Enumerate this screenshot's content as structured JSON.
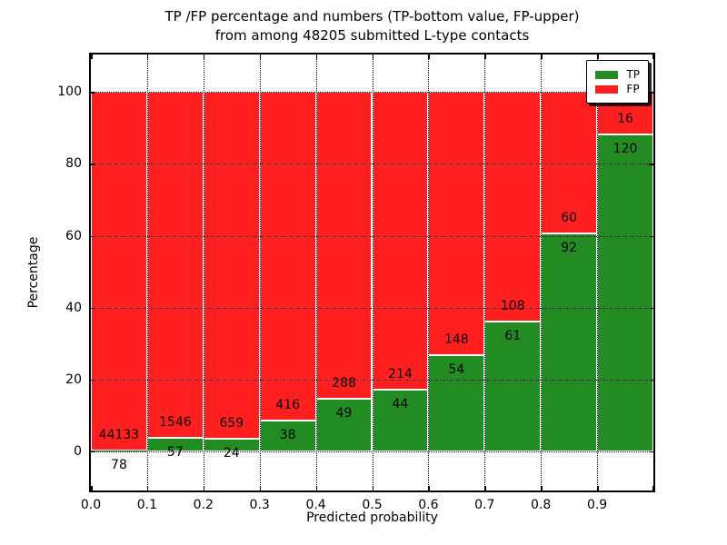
{
  "figure": {
    "title_line1": "TP /FP percentage and numbers (TP-bottom value, FP-upper)",
    "title_line2": "from among 48205 submitted L-type contacts"
  },
  "colors": {
    "tp_green": "#228b22",
    "fp_red": "#ff1f1f",
    "grid": "#000000",
    "frame": "#000000",
    "background": "#ffffff",
    "text": "#000000"
  },
  "chart_data": {
    "type": "bar",
    "stacked": true,
    "normalized_to_percent": true,
    "title_line1": "TP /FP percentage and numbers (TP-bottom value, FP-upper)",
    "title_line2": "from among 48205 submitted L-type contacts",
    "total_submitted_contacts": 48205,
    "xlabel": "Predicted probability",
    "ylabel": "Percentage",
    "xlim": [
      0.0,
      1.0
    ],
    "ylim": [
      -11,
      110.5
    ],
    "grid": true,
    "bin_width": 0.1,
    "x_tick_labels": [
      "0.0",
      "0.1",
      "0.2",
      "0.3",
      "0.4",
      "0.5",
      "0.6",
      "0.7",
      "0.8",
      "0.9"
    ],
    "y_tick_values": [
      0,
      20,
      40,
      60,
      80,
      100
    ],
    "y_tick_labels": [
      "0",
      "20",
      "40",
      "60",
      "80",
      "100"
    ],
    "legend": {
      "position": "upper right",
      "entries": [
        {
          "label": "TP",
          "color": "#228b22"
        },
        {
          "label": "FP",
          "color": "#ff1f1f"
        }
      ]
    },
    "annotation_note": "TP-bottom value, FP-upper",
    "bins": [
      {
        "x_start": 0.0,
        "x_end": 0.1,
        "tp": 78,
        "fp": 44133
      },
      {
        "x_start": 0.1,
        "x_end": 0.2,
        "tp": 57,
        "fp": 1546
      },
      {
        "x_start": 0.2,
        "x_end": 0.3,
        "tp": 24,
        "fp": 659
      },
      {
        "x_start": 0.3,
        "x_end": 0.4,
        "tp": 38,
        "fp": 416
      },
      {
        "x_start": 0.4,
        "x_end": 0.5,
        "tp": 49,
        "fp": 288
      },
      {
        "x_start": 0.5,
        "x_end": 0.6,
        "tp": 44,
        "fp": 214
      },
      {
        "x_start": 0.6,
        "x_end": 0.7,
        "tp": 54,
        "fp": 148
      },
      {
        "x_start": 0.7,
        "x_end": 0.8,
        "tp": 61,
        "fp": 108
      },
      {
        "x_start": 0.8,
        "x_end": 0.9,
        "tp": 92,
        "fp": 60
      },
      {
        "x_start": 0.9,
        "x_end": 1.0,
        "tp": 120,
        "fp": 16
      }
    ]
  }
}
